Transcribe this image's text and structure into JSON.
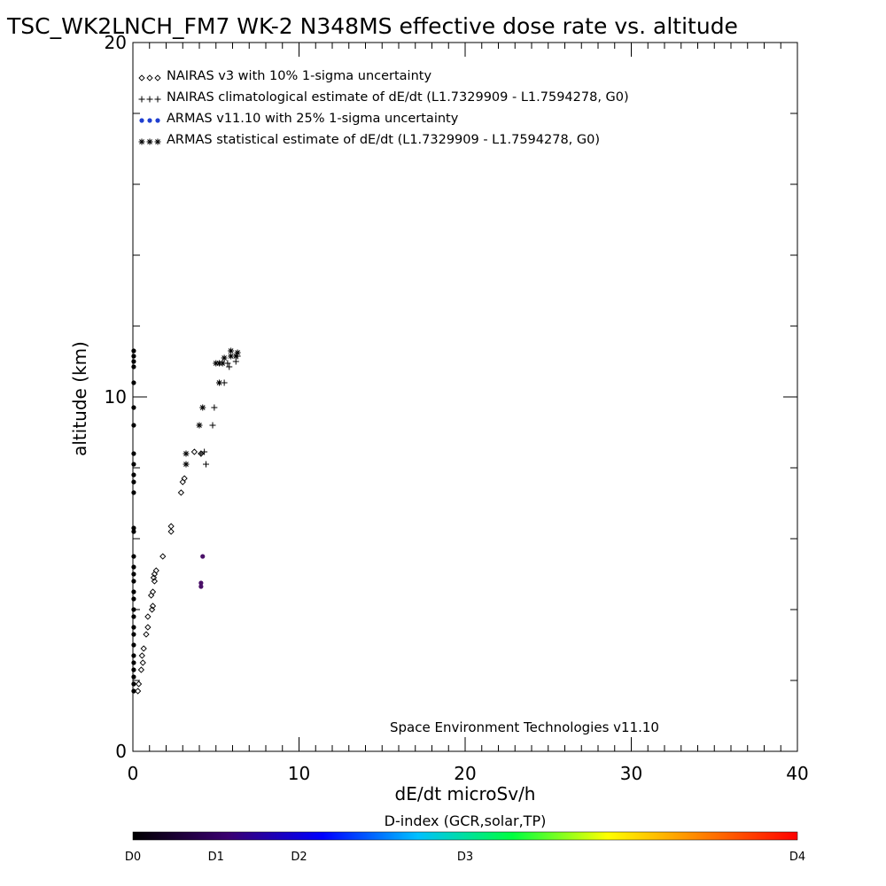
{
  "chart_data": {
    "type": "scatter",
    "title": "TSC_WK2LNCH_FM7 WK-2 N348MS effective dose rate vs. altitude",
    "xlabel": "dE/dt microSv/h",
    "ylabel": "altitude (km)",
    "xlim": [
      0,
      40
    ],
    "ylim": [
      0,
      20
    ],
    "x_ticks": [
      "0",
      "10",
      "20",
      "30",
      "40"
    ],
    "y_ticks": [
      "0",
      "10",
      "20"
    ],
    "x_minor_step": 1,
    "y_minor_step": 2,
    "legend_position": "top-left",
    "annotation": "Space Environment Technologies v11.10",
    "series": [
      {
        "name": "NAIRAS v3 with 10% 1-sigma uncertainty",
        "marker": "diamond",
        "color": "#000000",
        "points": [
          [
            0.3,
            1.7
          ],
          [
            0.35,
            1.9
          ],
          [
            0.5,
            2.3
          ],
          [
            0.6,
            2.5
          ],
          [
            0.55,
            2.7
          ],
          [
            0.65,
            2.9
          ],
          [
            0.8,
            3.3
          ],
          [
            0.9,
            3.5
          ],
          [
            0.9,
            3.8
          ],
          [
            1.15,
            4.0
          ],
          [
            1.2,
            4.1
          ],
          [
            1.1,
            4.4
          ],
          [
            1.2,
            4.5
          ],
          [
            1.3,
            4.8
          ],
          [
            1.25,
            4.9
          ],
          [
            1.3,
            5.0
          ],
          [
            1.4,
            5.1
          ],
          [
            1.8,
            5.5
          ],
          [
            2.3,
            6.2
          ],
          [
            2.3,
            6.35
          ],
          [
            2.9,
            7.3
          ],
          [
            3.0,
            7.6
          ],
          [
            3.1,
            7.7
          ],
          [
            3.7,
            8.45
          ],
          [
            4.1,
            8.4
          ]
        ]
      },
      {
        "name": "NAIRAS climatological estimate of dE/dt (L1.7329909 - L1.7594278, G0)",
        "marker": "plus",
        "color": "#000000",
        "points": [
          [
            4.1,
            8.4
          ],
          [
            4.4,
            8.1
          ],
          [
            4.3,
            8.45
          ],
          [
            4.8,
            9.2
          ],
          [
            4.9,
            9.7
          ],
          [
            5.5,
            10.4
          ],
          [
            5.8,
            10.85
          ],
          [
            6.2,
            11.0
          ],
          [
            6.3,
            11.15
          ],
          [
            5.7,
            10.95
          ]
        ]
      },
      {
        "name": "ARMAS v11.10 with 25% 1-sigma uncertainty",
        "marker": "dot",
        "color": "#1f3fd0",
        "points": [
          [
            0.05,
            1.7
          ],
          [
            0.05,
            1.9
          ],
          [
            0.05,
            2.1
          ],
          [
            0.05,
            2.3
          ],
          [
            0.05,
            2.5
          ],
          [
            0.05,
            2.7
          ],
          [
            0.05,
            3.0
          ],
          [
            0.05,
            3.3
          ],
          [
            0.05,
            3.5
          ],
          [
            0.05,
            3.8
          ],
          [
            0.05,
            4.0
          ],
          [
            0.05,
            4.3
          ],
          [
            0.05,
            4.5
          ],
          [
            0.05,
            4.8
          ],
          [
            0.05,
            5.0
          ],
          [
            0.05,
            5.2
          ],
          [
            0.05,
            5.5
          ],
          [
            0.05,
            6.2
          ],
          [
            0.05,
            6.3
          ],
          [
            0.05,
            7.3
          ],
          [
            0.05,
            7.6
          ],
          [
            0.05,
            7.8
          ],
          [
            0.05,
            8.1
          ],
          [
            0.05,
            8.4
          ],
          [
            0.05,
            9.2
          ],
          [
            0.05,
            9.7
          ],
          [
            0.05,
            10.4
          ],
          [
            0.05,
            10.85
          ],
          [
            0.05,
            11.0
          ],
          [
            0.05,
            11.15
          ],
          [
            0.05,
            11.3
          ],
          [
            4.1,
            4.65
          ],
          [
            4.1,
            4.75
          ],
          [
            4.2,
            5.5
          ]
        ]
      },
      {
        "name": "ARMAS statistical estimate of dE/dt (L1.7329909 - L1.7594278, G0)",
        "marker": "asterisk",
        "color": "#000000",
        "points": [
          [
            3.2,
            8.1
          ],
          [
            3.2,
            8.4
          ],
          [
            4.0,
            9.2
          ],
          [
            4.2,
            9.7
          ],
          [
            5.2,
            10.4
          ],
          [
            5.0,
            10.95
          ],
          [
            5.2,
            10.95
          ],
          [
            5.4,
            10.95
          ],
          [
            5.5,
            11.1
          ],
          [
            5.9,
            11.15
          ],
          [
            5.9,
            11.3
          ],
          [
            6.2,
            11.15
          ],
          [
            6.3,
            11.25
          ]
        ]
      }
    ],
    "colorbar": {
      "label": "D-index (GCR,solar,TP)",
      "tick_labels": [
        "D0",
        "D1",
        "D2",
        "D3",
        "D4"
      ],
      "tick_values": [
        0,
        1,
        2,
        3,
        4
      ],
      "tick_positions": [
        0,
        0.125,
        0.25,
        0.5,
        1.0
      ],
      "colors": [
        "#000000",
        "#3a0070",
        "#0000ff",
        "#00c0ff",
        "#00ff40",
        "#ffff00",
        "#ff8000",
        "#ff0000"
      ]
    }
  }
}
